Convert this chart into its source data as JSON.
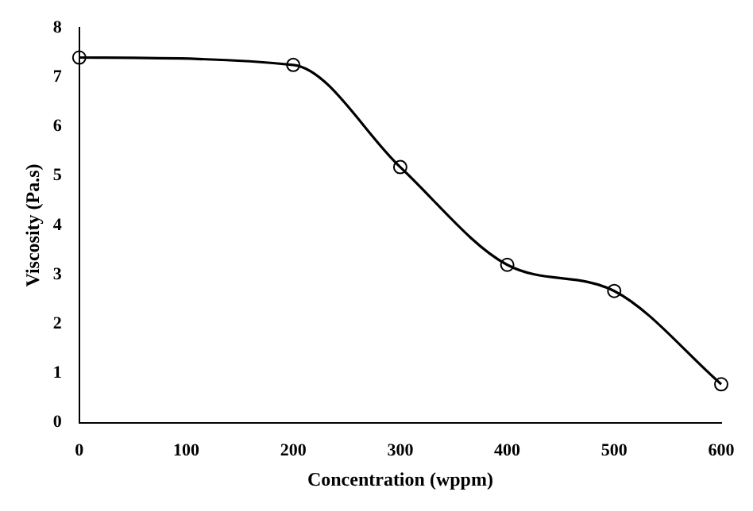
{
  "chart_data": {
    "type": "line",
    "xlabel": "Concentration (wppm)",
    "ylabel": "Viscosity (Pa.s)",
    "x": [
      0,
      200,
      300,
      400,
      500,
      600
    ],
    "series": [
      {
        "color": "#000000",
        "values": [
          7.4,
          7.25,
          5.18,
          3.2,
          2.67,
          0.78
        ]
      }
    ],
    "xlim": [
      0,
      600
    ],
    "xticks": [
      0,
      100,
      200,
      300,
      400,
      500,
      600
    ],
    "ylim": [
      0,
      8
    ],
    "yticks": [
      0,
      1,
      2,
      3,
      4,
      5,
      6,
      7,
      8
    ],
    "grid": false,
    "legend": false,
    "marker": "circle",
    "line_style": "solid"
  }
}
